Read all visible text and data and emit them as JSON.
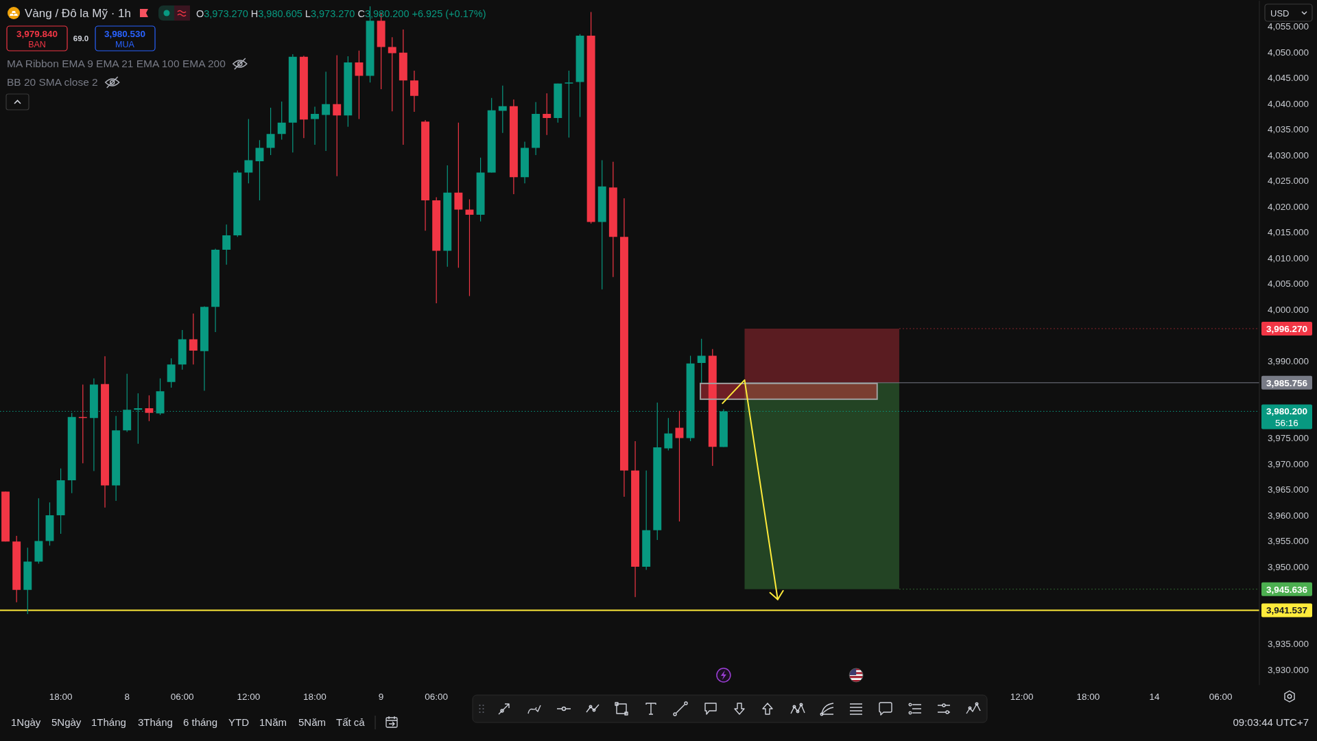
{
  "chart_data": {
    "type": "candlestick",
    "title": "Vàng / Đô la Mỹ · 1h",
    "subtitle": "O3,973.270 H3,980.605 L3,973.270 C3,980.200 +6.925 (+0.17%)",
    "categories": [
      null,
      null,
      null,
      null,
      null,
      "18:00",
      null,
      null,
      null,
      null,
      null,
      "8",
      null,
      null,
      null,
      null,
      "06:00",
      null,
      null,
      null,
      null,
      null,
      "12:00",
      null,
      null,
      null,
      null,
      null,
      "18:00",
      null,
      null,
      null,
      null,
      null,
      "9",
      null,
      null,
      null,
      null,
      "06:00",
      null,
      null,
      null,
      null,
      null,
      null,
      null,
      null,
      null,
      null,
      null,
      null,
      null,
      null,
      null,
      null,
      null,
      null,
      null,
      null,
      null,
      null,
      null,
      null,
      null,
      null,
      null,
      null,
      null,
      null,
      null,
      null,
      null,
      null,
      null,
      null,
      null,
      null,
      null,
      null,
      null,
      null,
      null,
      null,
      null,
      null,
      null,
      null,
      null,
      null,
      null,
      null,
      "12:00",
      null,
      null,
      null,
      null,
      null,
      "18:00",
      null,
      null,
      null,
      null,
      null,
      "14",
      null,
      null,
      null,
      null,
      null,
      "06:00",
      null,
      null,
      null
    ],
    "ohlc": [
      [
        3964.6,
        3964.6,
        3954.9,
        3954.9
      ],
      [
        3954.9,
        3956.0,
        3943.1,
        3945.5
      ],
      [
        3945.5,
        3953.7,
        3940.8,
        3951.0
      ],
      [
        3951.0,
        3963.3,
        3950.6,
        3955.0
      ],
      [
        3955.0,
        3962.5,
        3954.1,
        3960.0
      ],
      [
        3960.0,
        3969.1,
        3956.4,
        3966.8
      ],
      [
        3966.8,
        3979.9,
        3964.3,
        3979.1
      ],
      [
        3979.1,
        3985.4,
        3970.1,
        3978.9
      ],
      [
        3978.9,
        3986.6,
        3968.6,
        3985.4
      ],
      [
        3985.5,
        3990.9,
        3961.5,
        3965.8
      ],
      [
        3965.8,
        3979.3,
        3962.8,
        3976.5
      ],
      [
        3976.5,
        3987.5,
        3976.2,
        3980.5
      ],
      [
        3980.5,
        3983.7,
        3973.9,
        3980.8
      ],
      [
        3980.8,
        3983.3,
        3978.3,
        3979.9
      ],
      [
        3979.8,
        3986.6,
        3979.5,
        3984.1
      ],
      [
        3985.9,
        3990.5,
        3984.8,
        3989.3
      ],
      [
        3989.3,
        3996.0,
        3988.3,
        3994.2
      ],
      [
        3994.2,
        3999.2,
        3989.3,
        3992.0
      ],
      [
        3991.9,
        4000.6,
        3984.2,
        4000.5
      ],
      [
        4000.5,
        4011.8,
        3995.6,
        4011.6
      ],
      [
        4011.6,
        4016.5,
        4008.7,
        4014.4
      ],
      [
        4014.4,
        4027.0,
        4014.1,
        4026.6
      ],
      [
        4026.6,
        4037.0,
        4024.5,
        4029.0
      ],
      [
        4028.8,
        4032.9,
        4021.2,
        4031.4
      ],
      [
        4031.4,
        4039.2,
        4030.0,
        4034.1
      ],
      [
        4034.1,
        4040.4,
        4033.0,
        4036.3
      ],
      [
        4036.3,
        4049.6,
        4030.5,
        4049.1
      ],
      [
        4049.1,
        4049.3,
        4033.3,
        4036.9
      ],
      [
        4037.0,
        4039.4,
        4032.0,
        4038.0
      ],
      [
        4037.8,
        4046.2,
        4030.8,
        4039.9
      ],
      [
        4039.9,
        4049.4,
        4025.9,
        4037.7
      ],
      [
        4037.7,
        4049.2,
        4035.5,
        4048.0
      ],
      [
        4048.0,
        4050.3,
        4037.0,
        4045.4
      ],
      [
        4045.4,
        4058.9,
        4044.1,
        4056.1
      ],
      [
        4056.1,
        4057.7,
        4042.8,
        4051.0
      ],
      [
        4051.0,
        4052.9,
        4038.5,
        4049.8
      ],
      [
        4049.9,
        4054.4,
        4032.0,
        4044.5
      ],
      [
        4044.5,
        4046.4,
        4038.4,
        4041.5
      ],
      [
        4036.5,
        4036.8,
        4015.3,
        4021.2
      ],
      [
        4021.2,
        4021.8,
        4001.2,
        4011.4
      ],
      [
        4011.4,
        4028.0,
        4008.3,
        4022.7
      ],
      [
        4022.7,
        4036.3,
        4008.1,
        4019.4
      ],
      [
        4019.4,
        4021.4,
        4002.6,
        4018.4
      ],
      [
        4018.4,
        4029.5,
        4017.1,
        4026.6
      ],
      [
        4026.6,
        4041.1,
        4026.6,
        4038.7
      ],
      [
        4038.6,
        4043.5,
        4034.3,
        4039.5
      ],
      [
        4039.5,
        4040.8,
        4022.4,
        4025.7
      ],
      [
        4025.7,
        4032.6,
        4024.5,
        4031.4
      ],
      [
        4031.4,
        4040.3,
        4030.0,
        4038.0
      ],
      [
        4038.0,
        4042.0,
        4033.9,
        4037.2
      ],
      [
        4037.2,
        4043.9,
        4036.3,
        4043.9
      ],
      [
        4043.9,
        4046.4,
        4033.4,
        4044.1
      ],
      [
        4044.2,
        4053.5,
        4037.4,
        4053.2
      ],
      [
        4053.2,
        4057.8,
        4016.7,
        4017.0
      ],
      [
        4017.0,
        4029.0,
        4003.9,
        4023.9
      ],
      [
        4023.7,
        4028.7,
        4006.3,
        4014.1
      ],
      [
        4014.1,
        4021.6,
        3963.6,
        3968.7
      ],
      [
        3968.7,
        3974.4,
        3944.1,
        3950.0
      ],
      [
        3950.0,
        3968.7,
        3949.4,
        3957.1
      ],
      [
        3957.1,
        3981.9,
        3955.2,
        3973.2
      ],
      [
        3973.0,
        3978.9,
        3972.6,
        3975.9
      ],
      [
        3977.0,
        3980.3,
        3958.8,
        3975.0
      ],
      [
        3975.0,
        3991.0,
        3974.4,
        3989.5
      ],
      [
        3989.6,
        3994.3,
        3985.5,
        3991.0
      ],
      [
        3991.0,
        3992.3,
        3969.6,
        3973.3
      ],
      [
        3973.27,
        3980.605,
        3973.27,
        3980.2
      ],
      null,
      null,
      null,
      null,
      null,
      null,
      null,
      null,
      null,
      null,
      null,
      null,
      null,
      null,
      null,
      null,
      null,
      null,
      null,
      null,
      null,
      null,
      null,
      null,
      null,
      null,
      null,
      null,
      null,
      null,
      null,
      null,
      null,
      null,
      null,
      null,
      null,
      null,
      null,
      null,
      null,
      null,
      null,
      null,
      null,
      null,
      null,
      null
    ],
    "colors": [
      "#f23645",
      "#f23645",
      "#089981",
      "#089981",
      "#089981",
      "#089981",
      "#089981",
      "#f23645",
      "#089981",
      "#f23645",
      "#089981",
      "#089981",
      "#089981",
      "#f23645",
      "#089981",
      "#089981",
      "#089981",
      "#f23645",
      "#089981",
      "#089981",
      "#089981",
      "#089981",
      "#089981",
      "#089981",
      "#089981",
      "#089981",
      "#089981",
      "#f23645",
      "#089981",
      "#089981",
      "#f23645",
      "#089981",
      "#f23645",
      "#089981",
      "#f23645",
      "#f23645",
      "#f23645",
      "#f23645",
      "#f23645",
      "#f23645",
      "#089981",
      "#f23645",
      "#f23645",
      "#089981",
      "#089981",
      "#089981",
      "#f23645",
      "#089981",
      "#089981",
      "#f23645",
      "#089981",
      "#089981",
      "#089981",
      "#f23645",
      "#089981",
      "#f23645",
      "#f23645",
      "#f23645",
      "#089981",
      "#089981",
      "#089981",
      "#f23645",
      "#089981",
      "#089981",
      "#f23645",
      "#089981",
      null,
      null,
      null,
      null,
      null,
      null,
      null,
      null,
      null,
      null,
      null,
      null,
      null,
      null,
      null,
      null,
      null,
      null,
      null,
      null,
      null,
      null,
      null,
      null,
      null,
      null,
      null,
      null,
      null,
      null,
      null,
      null,
      null,
      null,
      null,
      null,
      null,
      null,
      null,
      null,
      null,
      null,
      null,
      null,
      null,
      null,
      null,
      null
    ],
    "ylim": [
      3927,
      4060
    ],
    "yticks": [
      {
        "value": 3930,
        "label": "3,930.000"
      },
      {
        "value": 3935,
        "label": "3,935.000"
      },
      {
        "value": 3950,
        "label": "3,950.000"
      },
      {
        "value": 3955,
        "label": "3,955.000"
      },
      {
        "value": 3960,
        "label": "3,960.000"
      },
      {
        "value": 3965,
        "label": "3,965.000"
      },
      {
        "value": 3970,
        "label": "3,970.000"
      },
      {
        "value": 3975,
        "label": "3,975.000"
      },
      {
        "value": 3990,
        "label": "3,990.000"
      },
      {
        "value": 4000,
        "label": "4,000.000"
      },
      {
        "value": 4005,
        "label": "4,005.000"
      },
      {
        "value": 4010,
        "label": "4,010.000"
      },
      {
        "value": 4015,
        "label": "4,015.000"
      },
      {
        "value": 4020,
        "label": "4,020.000"
      },
      {
        "value": 4025,
        "label": "4,025.000"
      },
      {
        "value": 4030,
        "label": "4,030.000"
      },
      {
        "value": 4035,
        "label": "4,035.000"
      },
      {
        "value": 4040,
        "label": "4,040.000"
      },
      {
        "value": 4045,
        "label": "4,045.000"
      },
      {
        "value": 4050,
        "label": "4,050.000"
      },
      {
        "value": 4055,
        "label": "4,055.000"
      }
    ],
    "ref_lines": [
      {
        "axis": "y",
        "value": 3980.2,
        "label": "3,980.200",
        "color": "#089981",
        "line_style": "dotted"
      },
      {
        "axis": "y",
        "value": 3985.756,
        "label": "3,985.756",
        "color": "#787b86"
      },
      {
        "axis": "y",
        "value": 3941.537,
        "label": "3,941.537",
        "color": "#ffeb3b",
        "line_style": "solid"
      }
    ],
    "bands": [
      {
        "axis": "y",
        "from": 3985.756,
        "to": 3996.27,
        "label": "3,996.270",
        "color": "#f23645"
      },
      {
        "axis": "y",
        "from": 3945.636,
        "to": 3985.756,
        "label": "3,945.636",
        "color": "#4caf50"
      }
    ],
    "annotations": [
      "3,979.840",
      "BAN",
      "69.0",
      "3,980.530",
      "MUA",
      "MA Ribbon EMA 9 EMA 21 EMA 100 EMA 200",
      "BB 20 SMA close 2",
      "56:16",
      "USD",
      "1Ngày",
      "5Ngày",
      "1Tháng",
      "3Tháng",
      "6 tháng",
      "YTD",
      "1Năm",
      "5Năm",
      "Tất cả",
      "09:03:44 UTC+7"
    ]
  }
}
